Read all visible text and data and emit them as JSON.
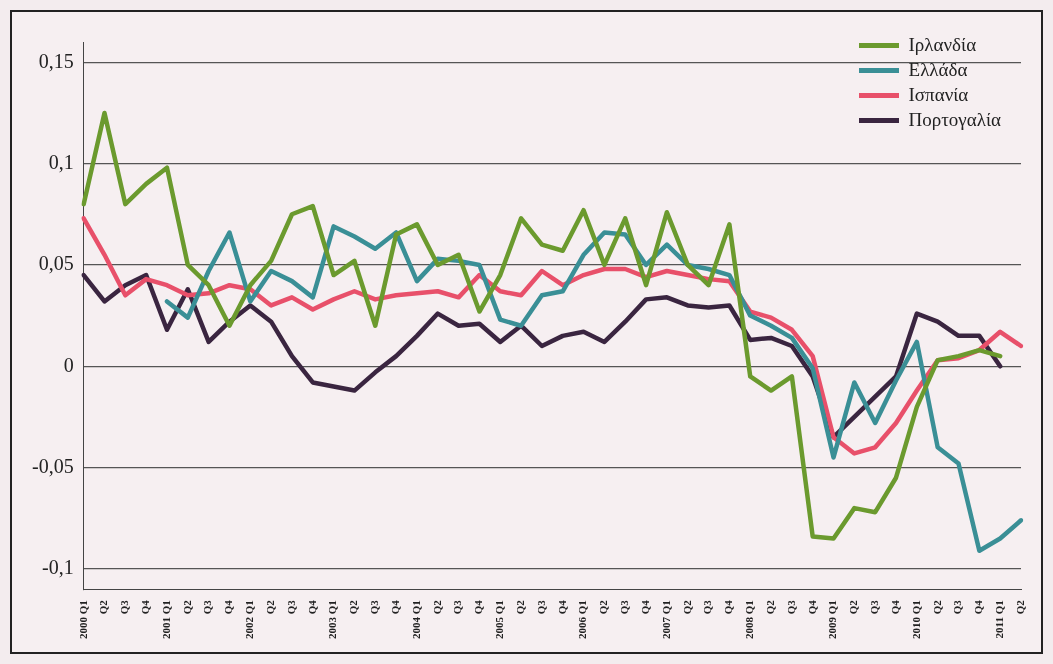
{
  "chart_data": {
    "type": "line",
    "categories": [
      "2000 Q1",
      "Q2",
      "Q3",
      "Q4",
      "2001 Q1",
      "Q2",
      "Q3",
      "Q4",
      "2002 Q1",
      "Q2",
      "Q3",
      "Q4",
      "2003 Q1",
      "Q2",
      "Q3",
      "Q4",
      "2004 Q1",
      "Q2",
      "Q3",
      "Q4",
      "2005 Q1",
      "Q2",
      "Q3",
      "Q4",
      "2006 Q1",
      "Q2",
      "Q3",
      "Q4",
      "2007 Q1",
      "Q2",
      "Q3",
      "Q4",
      "2008 Q1",
      "Q2",
      "Q3",
      "Q4",
      "2009 Q1",
      "Q2",
      "Q3",
      "Q4",
      "2010 Q1",
      "Q2",
      "Q3",
      "Q4",
      "2011 Q1",
      "Q2"
    ],
    "series": [
      {
        "name": "Ιρλανδία",
        "color": "#6b9a2e",
        "values": [
          0.08,
          0.125,
          0.08,
          0.09,
          0.098,
          0.05,
          0.04,
          0.02,
          0.04,
          0.052,
          0.075,
          0.079,
          0.045,
          0.052,
          0.02,
          0.065,
          0.07,
          0.05,
          0.055,
          0.027,
          0.045,
          0.073,
          0.06,
          0.057,
          0.077,
          0.05,
          0.073,
          0.04,
          0.076,
          0.05,
          0.04,
          0.07,
          -0.005,
          -0.012,
          -0.005,
          -0.084,
          -0.085,
          -0.07,
          -0.072,
          -0.055,
          -0.02,
          0.003,
          0.005,
          0.008,
          0.005,
          null
        ]
      },
      {
        "name": "Ελλάδα",
        "color": "#3a8f96",
        "values": [
          null,
          null,
          null,
          null,
          0.032,
          0.024,
          0.047,
          0.066,
          0.032,
          0.047,
          0.042,
          0.034,
          0.069,
          0.064,
          0.058,
          0.066,
          0.042,
          0.053,
          0.052,
          0.05,
          0.023,
          0.02,
          0.035,
          0.037,
          0.055,
          0.066,
          0.065,
          0.05,
          0.06,
          0.05,
          0.048,
          0.045,
          0.025,
          0.02,
          0.014,
          -0.001,
          -0.045,
          -0.008,
          -0.028,
          -0.007,
          0.012,
          -0.04,
          -0.048,
          -0.091,
          -0.085,
          -0.076
        ]
      },
      {
        "name": "Ισπανία",
        "color": "#e8506a",
        "values": [
          0.073,
          0.055,
          0.035,
          0.043,
          0.04,
          0.035,
          0.036,
          0.04,
          0.038,
          0.03,
          0.034,
          0.028,
          0.033,
          0.037,
          0.033,
          0.035,
          0.036,
          0.037,
          0.034,
          0.045,
          0.037,
          0.035,
          0.047,
          0.04,
          0.045,
          0.048,
          0.048,
          0.044,
          0.047,
          0.045,
          0.043,
          0.042,
          0.027,
          0.024,
          0.018,
          0.005,
          -0.035,
          -0.043,
          -0.04,
          -0.028,
          -0.012,
          0.003,
          0.004,
          0.008,
          0.017,
          0.01
        ]
      },
      {
        "name": "Πορτογαλία",
        "color": "#3a2540",
        "values": [
          0.045,
          0.032,
          0.04,
          0.045,
          0.018,
          0.038,
          0.012,
          0.022,
          0.03,
          0.022,
          0.005,
          -0.008,
          -0.01,
          -0.012,
          -0.003,
          0.005,
          0.015,
          0.026,
          0.02,
          0.021,
          0.012,
          0.02,
          0.01,
          0.015,
          0.017,
          0.012,
          0.022,
          0.033,
          0.034,
          0.03,
          0.029,
          0.03,
          0.013,
          0.014,
          0.01,
          -0.005,
          -0.035,
          -0.025,
          -0.015,
          -0.005,
          0.026,
          0.022,
          0.015,
          0.015,
          0.0,
          null
        ]
      }
    ],
    "ylim": [
      -0.11,
      0.16
    ],
    "yticks": [
      {
        "value": 0.15,
        "label": "0,15"
      },
      {
        "value": 0.1,
        "label": "0,1"
      },
      {
        "value": 0.05,
        "label": "0,05"
      },
      {
        "value": 0,
        "label": "0"
      },
      {
        "value": -0.05,
        "label": "-0,05"
      },
      {
        "value": -0.1,
        "label": "-0,1"
      }
    ],
    "grid": "y",
    "legend": "top right",
    "marker": "none",
    "line_style": "solid"
  }
}
